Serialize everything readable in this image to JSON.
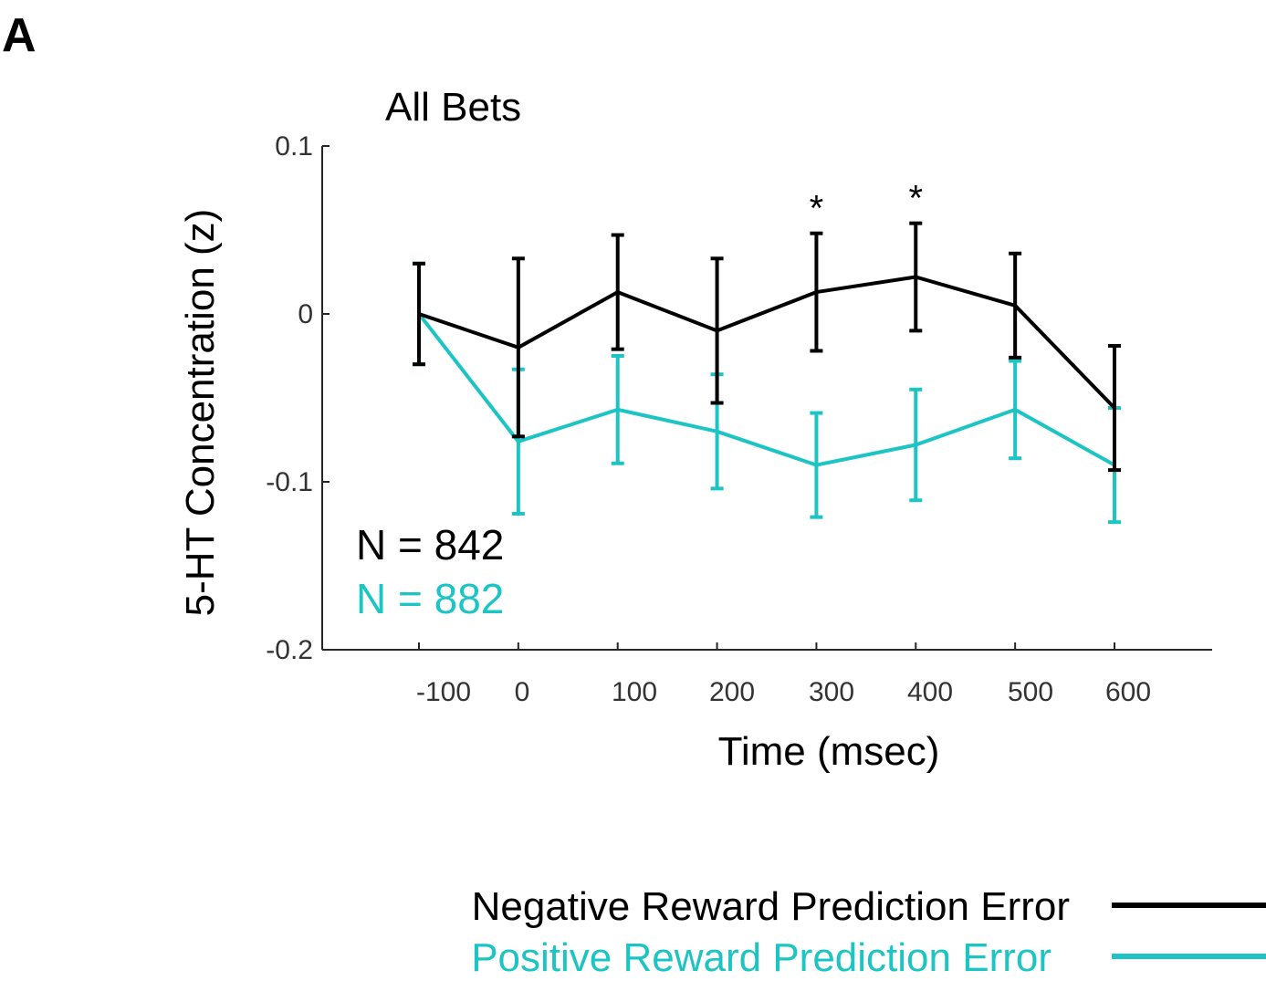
{
  "panel_label": "A",
  "chart_data": {
    "type": "line",
    "title": "All Bets",
    "xlabel": "Time (msec)",
    "ylabel": "5-HT Concentration (z)",
    "ylim": [
      -0.2,
      0.1
    ],
    "x": [
      -100,
      0,
      100,
      200,
      300,
      400,
      500,
      600
    ],
    "x_tick_labels": [
      "-100",
      "0",
      "100",
      "200",
      "300",
      "400",
      "500",
      "600"
    ],
    "y_ticks": [
      0.1,
      0,
      -0.1,
      -0.2
    ],
    "y_tick_labels": [
      "0.1",
      "0",
      "-0.1",
      "-0.2"
    ],
    "grid": false,
    "series": [
      {
        "name": "Negative Reward Prediction Error",
        "color": "#000000",
        "values": [
          0.0,
          -0.02,
          0.013,
          -0.01,
          0.013,
          0.022,
          0.005,
          -0.056
        ],
        "error": [
          0.03,
          0.053,
          0.034,
          0.043,
          0.035,
          0.032,
          0.031,
          0.037
        ]
      },
      {
        "name": "Positive Reward Prediction Error",
        "color": "#1cc4c4",
        "values": [
          0.0,
          -0.076,
          -0.057,
          -0.07,
          -0.09,
          -0.078,
          -0.057,
          -0.09
        ],
        "error": [
          0.03,
          0.043,
          0.032,
          0.034,
          0.031,
          0.033,
          0.029,
          0.034
        ]
      }
    ],
    "significance": [
      {
        "x": 300,
        "label": "*"
      },
      {
        "x": 400,
        "label": "*"
      }
    ],
    "annotations": [
      {
        "text": "N = 842",
        "color": "#000000"
      },
      {
        "text": "N = 882",
        "color": "#1cc4c4"
      }
    ],
    "legend_position": "bottom-right"
  }
}
